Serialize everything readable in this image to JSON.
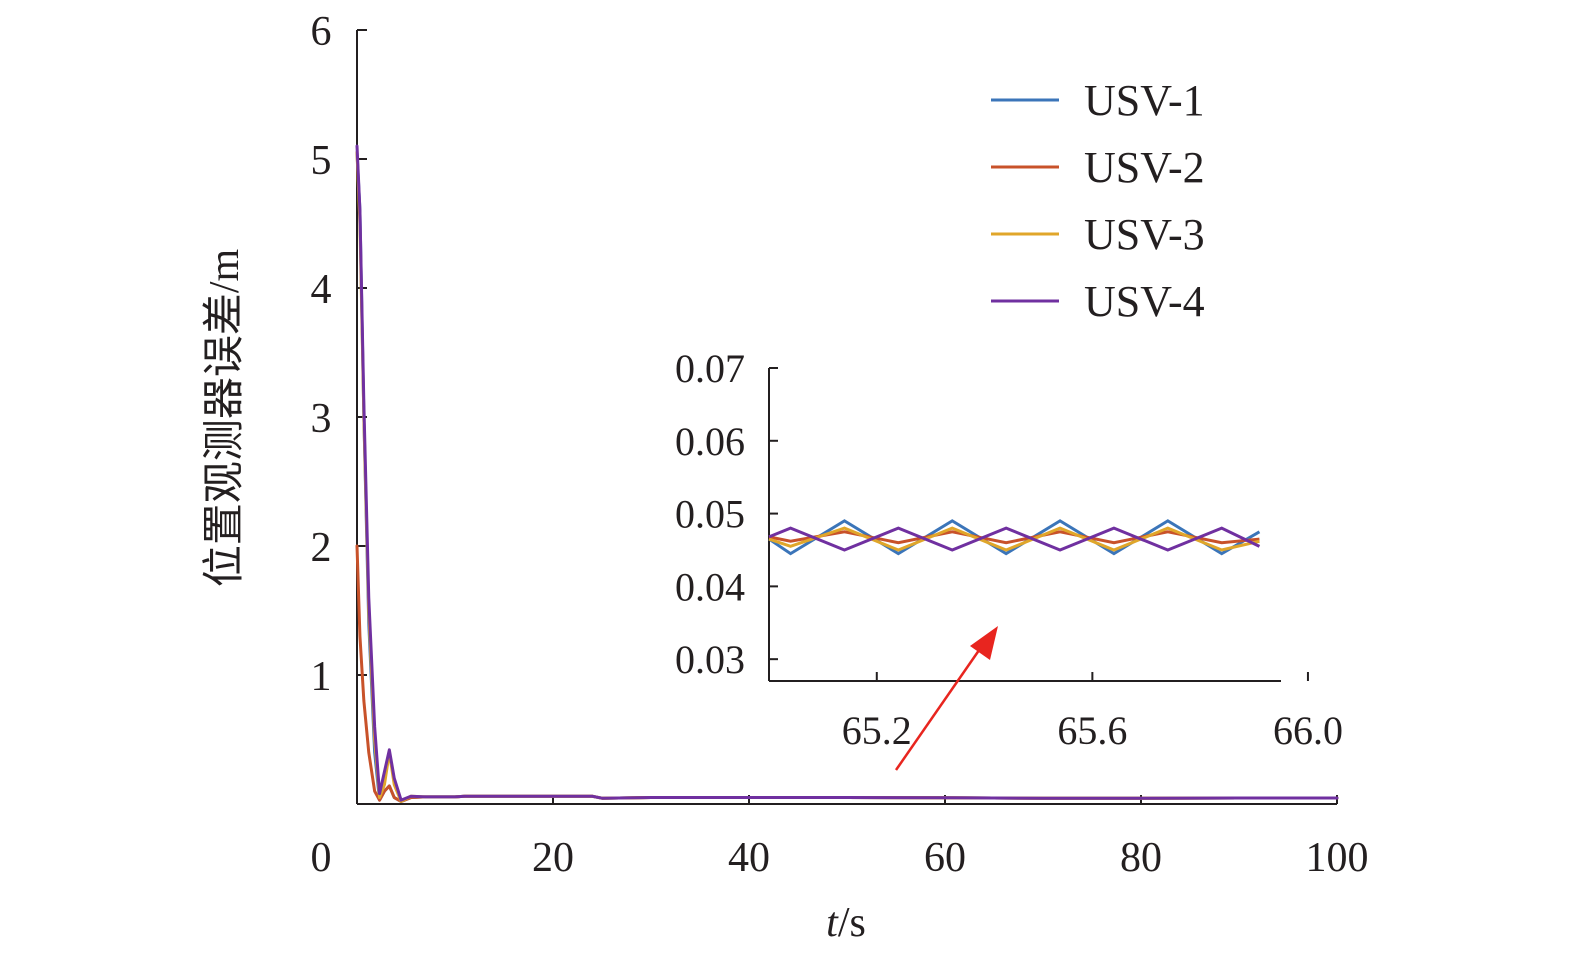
{
  "chart_data": [
    {
      "type": "line",
      "title": "",
      "xlabel_var": "t",
      "xlabel_unit": "/s",
      "ylabel": "位置观测器误差/m",
      "xlim": [
        0,
        100
      ],
      "ylim": [
        0,
        6
      ],
      "x_ticks": [
        0,
        20,
        40,
        60,
        80,
        100
      ],
      "x_tick_labels": [
        "0",
        "20",
        "40",
        "60",
        "80",
        "100"
      ],
      "y_ticks": [
        1,
        2,
        3,
        4,
        5,
        6
      ],
      "y_tick_labels": [
        "1",
        "2",
        "3",
        "4",
        "5",
        "6"
      ],
      "legend_position": "top-right",
      "series": [
        {
          "name": "USV-1",
          "color": "#3b75b9",
          "x": [
            0,
            0.3,
            0.7,
            1.2,
            1.8,
            2.3,
            2.8,
            3.3,
            3.8,
            4.5,
            5.5,
            7,
            10,
            11,
            12,
            15,
            20,
            24,
            25,
            30,
            40,
            50,
            60,
            70,
            80,
            90,
            100
          ],
          "y": [
            5.05,
            4.6,
            3.0,
            1.4,
            0.4,
            0.03,
            0.1,
            0.14,
            0.05,
            0.02,
            0.05,
            0.055,
            0.055,
            0.06,
            0.06,
            0.06,
            0.06,
            0.06,
            0.045,
            0.05,
            0.05,
            0.05,
            0.048,
            0.045,
            0.045,
            0.047,
            0.047
          ]
        },
        {
          "name": "USV-2",
          "color": "#c8522a",
          "x": [
            0,
            0.3,
            0.7,
            1.2,
            1.8,
            2.3,
            2.8,
            3.3,
            3.8,
            4.5,
            5.5,
            7,
            10,
            11,
            12,
            15,
            20,
            24,
            25,
            30,
            40,
            50,
            60,
            70,
            80,
            90,
            100
          ],
          "y": [
            2.0,
            1.3,
            0.8,
            0.4,
            0.1,
            0.03,
            0.1,
            0.14,
            0.05,
            0.02,
            0.05,
            0.055,
            0.055,
            0.06,
            0.06,
            0.06,
            0.06,
            0.06,
            0.045,
            0.05,
            0.05,
            0.05,
            0.048,
            0.045,
            0.045,
            0.047,
            0.047
          ]
        },
        {
          "name": "USV-3",
          "color": "#e0a62a",
          "x": [
            0,
            0.3,
            0.7,
            1.2,
            1.8,
            2.3,
            2.8,
            3.3,
            3.8,
            4.5,
            5.5,
            7,
            10,
            11,
            12,
            15,
            20,
            24,
            25,
            30,
            40,
            50,
            60,
            70,
            80,
            90,
            100
          ],
          "y": [
            5.05,
            4.5,
            3.0,
            1.5,
            0.5,
            0.05,
            0.15,
            0.4,
            0.15,
            0.02,
            0.06,
            0.055,
            0.055,
            0.06,
            0.06,
            0.06,
            0.06,
            0.06,
            0.045,
            0.05,
            0.05,
            0.05,
            0.048,
            0.045,
            0.045,
            0.047,
            0.047
          ]
        },
        {
          "name": "USV-4",
          "color": "#7030a0",
          "x": [
            0,
            0.3,
            0.7,
            1.2,
            1.8,
            2.3,
            2.8,
            3.3,
            3.8,
            4.5,
            5.5,
            7,
            10,
            11,
            12,
            15,
            20,
            24,
            25,
            30,
            40,
            50,
            60,
            70,
            80,
            90,
            100
          ],
          "y": [
            5.1,
            4.6,
            3.1,
            1.6,
            0.6,
            0.08,
            0.25,
            0.42,
            0.2,
            0.03,
            0.06,
            0.055,
            0.055,
            0.06,
            0.06,
            0.06,
            0.06,
            0.06,
            0.045,
            0.05,
            0.05,
            0.05,
            0.048,
            0.045,
            0.045,
            0.047,
            0.047
          ]
        }
      ]
    },
    {
      "type": "line",
      "title": "",
      "xlim": [
        65.0,
        65.95
      ],
      "ylim": [
        0.027,
        0.07
      ],
      "x_ticks": [
        65.2,
        65.6,
        66.0
      ],
      "x_tick_labels": [
        "65.2",
        "65.6",
        "66.0"
      ],
      "y_ticks": [
        0.03,
        0.04,
        0.05,
        0.06,
        0.07
      ],
      "y_tick_labels": [
        "0.03",
        "0.04",
        "0.05",
        "0.06",
        "0.07"
      ],
      "series": [
        {
          "name": "USV-1",
          "color": "#3b75b9",
          "x": [
            65.0,
            65.04,
            65.14,
            65.24,
            65.34,
            65.44,
            65.54,
            65.64,
            65.74,
            65.84,
            65.91
          ],
          "y": [
            0.0465,
            0.0445,
            0.049,
            0.0445,
            0.049,
            0.0445,
            0.049,
            0.0445,
            0.049,
            0.0445,
            0.0475
          ]
        },
        {
          "name": "USV-2",
          "color": "#c8522a",
          "x": [
            65.0,
            65.04,
            65.14,
            65.24,
            65.34,
            65.44,
            65.54,
            65.64,
            65.74,
            65.84,
            65.91
          ],
          "y": [
            0.0468,
            0.0462,
            0.0475,
            0.046,
            0.0475,
            0.046,
            0.0475,
            0.046,
            0.0475,
            0.046,
            0.0465
          ]
        },
        {
          "name": "USV-3",
          "color": "#e0a62a",
          "x": [
            65.0,
            65.04,
            65.14,
            65.24,
            65.34,
            65.44,
            65.54,
            65.64,
            65.74,
            65.84,
            65.91
          ],
          "y": [
            0.0465,
            0.0455,
            0.048,
            0.045,
            0.048,
            0.045,
            0.048,
            0.045,
            0.048,
            0.045,
            0.0462
          ]
        },
        {
          "name": "USV-4",
          "color": "#7030a0",
          "x": [
            65.0,
            65.04,
            65.14,
            65.24,
            65.34,
            65.44,
            65.54,
            65.64,
            65.74,
            65.84,
            65.91
          ],
          "y": [
            0.0468,
            0.048,
            0.045,
            0.048,
            0.045,
            0.048,
            0.045,
            0.048,
            0.045,
            0.048,
            0.0455
          ]
        }
      ]
    }
  ],
  "annotation": {
    "arrow_color": "#e8251f"
  }
}
